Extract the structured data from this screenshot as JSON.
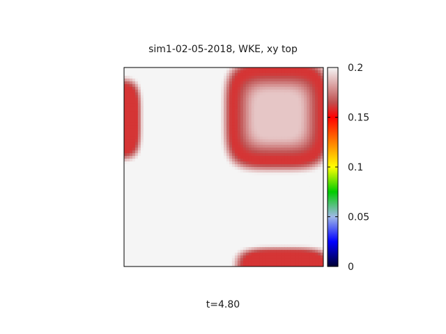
{
  "chart_data": {
    "type": "heatmap",
    "title": "sim1-02-05-2018, WKE, xy top",
    "caption": "t=4.80",
    "xlabel": "",
    "ylabel": "",
    "colorbar": {
      "range": [
        0,
        0.2
      ],
      "ticks": [
        0,
        0.05,
        0.1,
        0.15,
        0.2
      ],
      "tick_labels": [
        "0",
        "0.05",
        "0.1",
        "0.15",
        "0.2"
      ],
      "gradient": [
        {
          "v": 0.0,
          "color": "#000033"
        },
        {
          "v": 0.025,
          "color": "#0000ff"
        },
        {
          "v": 0.05,
          "color": "#9fb8e8"
        },
        {
          "v": 0.075,
          "color": "#00cc00"
        },
        {
          "v": 0.1,
          "color": "#ffff00"
        },
        {
          "v": 0.125,
          "color": "#ff7f00"
        },
        {
          "v": 0.15,
          "color": "#ff0000"
        },
        {
          "v": 0.165,
          "color": "#c05050"
        },
        {
          "v": 0.2,
          "color": "#f5f5f5"
        }
      ]
    },
    "field": {
      "background_value": 0.2,
      "features": [
        {
          "kind": "ring",
          "center": [
            0.77,
            0.76
          ],
          "outer_radius": [
            0.27,
            0.28
          ],
          "inner_radius": [
            0.19,
            0.19
          ],
          "ring_value": 0.16,
          "core_value": 0.19
        },
        {
          "kind": "blob",
          "center": [
            -0.05,
            0.74
          ],
          "radius": [
            0.14,
            0.21
          ],
          "value": 0.16
        },
        {
          "kind": "blob",
          "center": [
            0.8,
            -0.04
          ],
          "radius": [
            0.25,
            0.14
          ],
          "value": 0.16
        }
      ]
    }
  }
}
